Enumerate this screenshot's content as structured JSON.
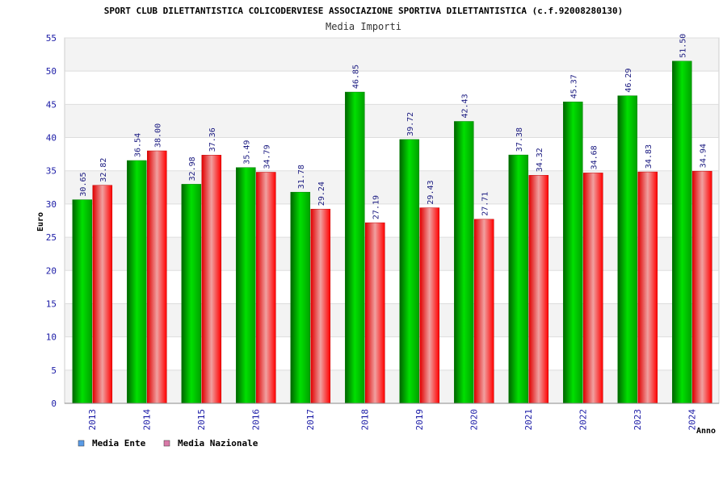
{
  "chart_data": {
    "type": "bar",
    "title": "SPORT CLUB DILETTANTISTICA COLICODERVIESE ASSOCIAZIONE SPORTIVA DILETTANTISTICA (c.f.92008280130)",
    "subtitle": "Media Importi",
    "xlabel": "Anno",
    "ylabel": "Euro",
    "ylim": [
      0,
      55
    ],
    "yticks": [
      0,
      5,
      10,
      15,
      20,
      25,
      30,
      35,
      40,
      45,
      50,
      55
    ],
    "grid": true,
    "legend_position": "bottom-left",
    "categories": [
      "2013",
      "2014",
      "2015",
      "2016",
      "2017",
      "2018",
      "2019",
      "2020",
      "2021",
      "2022",
      "2023",
      "2024"
    ],
    "series": [
      {
        "name": "Media Ente",
        "color": "#00b400",
        "legend_color": "#5a9be6",
        "values": [
          30.65,
          36.54,
          32.98,
          35.49,
          31.78,
          46.85,
          39.72,
          42.43,
          37.38,
          45.37,
          46.29,
          51.5
        ],
        "labels": [
          "30.65",
          "36.54",
          "32.98",
          "35.49",
          "31.78",
          "46.85",
          "39.72",
          "42.43",
          "37.38",
          "45.37",
          "46.29",
          "51.50"
        ]
      },
      {
        "name": "Media Nazionale",
        "color": "#e60000",
        "legend_color": "#d97aa8",
        "values": [
          32.82,
          38.0,
          37.36,
          34.79,
          29.24,
          27.19,
          29.43,
          27.71,
          34.32,
          34.68,
          34.83,
          34.94
        ],
        "labels": [
          "32.82",
          "38.00",
          "37.36",
          "34.79",
          "29.24",
          "27.19",
          "29.43",
          "27.71",
          "34.32",
          "34.68",
          "34.83",
          "34.94"
        ]
      }
    ]
  }
}
